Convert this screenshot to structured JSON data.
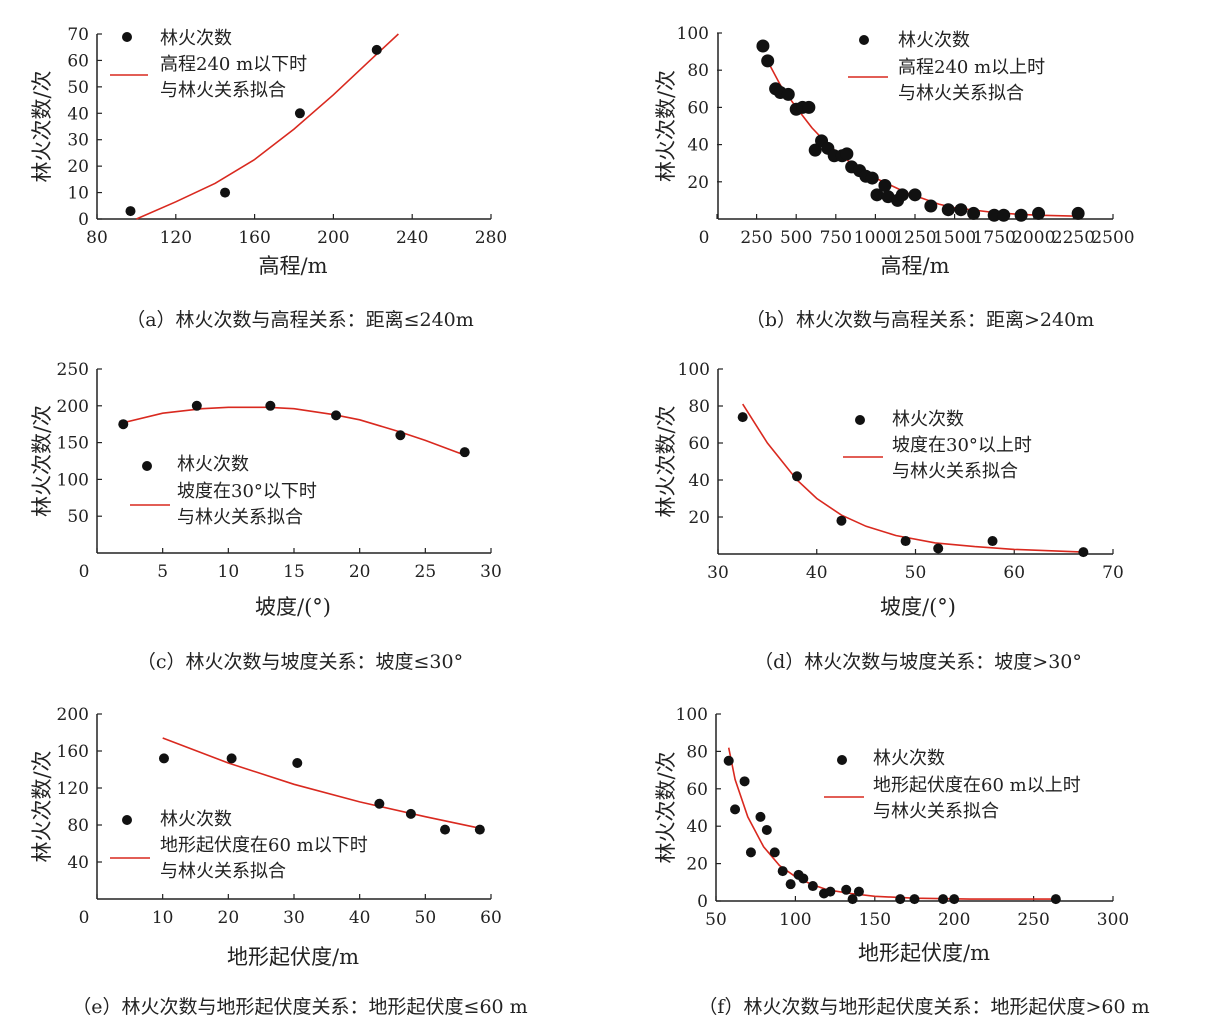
{
  "colors": {
    "fit": "#d9291f",
    "point": "#111111",
    "axis": "#222222"
  },
  "chart_data": [
    {
      "id": "a",
      "type": "scatter",
      "caption": "（a）林火次数与高程关系：距离≤240m",
      "xlabel": "高程/m",
      "ylabel": "林火次数/次",
      "xlim": [
        80,
        280
      ],
      "ylim": [
        0,
        70
      ],
      "xticks": [
        80,
        120,
        160,
        200,
        240,
        280
      ],
      "yticks": [
        0,
        10,
        20,
        30,
        40,
        50,
        60,
        70
      ],
      "legend": {
        "points": "林火次数",
        "fit_line1": "高程240 m以下时",
        "fit_line2": "与林火关系拟合"
      },
      "points": [
        [
          97,
          3
        ],
        [
          145,
          10
        ],
        [
          183,
          40
        ],
        [
          222,
          64
        ]
      ],
      "fit": [
        [
          100,
          0
        ],
        [
          120,
          6.5
        ],
        [
          140,
          13.5
        ],
        [
          160,
          22.5
        ],
        [
          180,
          34
        ],
        [
          200,
          47
        ],
        [
          220,
          61
        ],
        [
          233,
          70
        ]
      ]
    },
    {
      "id": "b",
      "type": "scatter",
      "caption": "（b）林火次数与高程关系：距离>240m",
      "xlabel": "高程/m",
      "ylabel": "林火次数/次",
      "xlim": [
        0,
        2500
      ],
      "ylim": [
        0,
        100
      ],
      "xticks": [
        0,
        250,
        500,
        750,
        1000,
        1250,
        1500,
        1750,
        2000,
        2250,
        2500
      ],
      "yticks": [
        20,
        40,
        60,
        80,
        100
      ],
      "legend": {
        "points": "林火次数",
        "fit_line1": "高程240 m以上时",
        "fit_line2": "与林火关系拟合"
      },
      "points": [
        [
          290,
          93
        ],
        [
          320,
          85
        ],
        [
          370,
          70
        ],
        [
          400,
          68
        ],
        [
          450,
          67
        ],
        [
          500,
          59
        ],
        [
          540,
          60
        ],
        [
          580,
          60
        ],
        [
          620,
          37
        ],
        [
          660,
          42
        ],
        [
          700,
          38
        ],
        [
          740,
          34
        ],
        [
          790,
          34
        ],
        [
          820,
          35
        ],
        [
          850,
          28
        ],
        [
          900,
          26
        ],
        [
          940,
          23
        ],
        [
          980,
          22
        ],
        [
          1010,
          13
        ],
        [
          1060,
          18
        ],
        [
          1080,
          12
        ],
        [
          1140,
          10
        ],
        [
          1170,
          13
        ],
        [
          1250,
          13
        ],
        [
          1350,
          7
        ],
        [
          1460,
          5
        ],
        [
          1540,
          5
        ],
        [
          1620,
          3
        ],
        [
          1750,
          2
        ],
        [
          1810,
          2
        ],
        [
          1920,
          2
        ],
        [
          2030,
          3
        ],
        [
          2280,
          3
        ]
      ],
      "fit": [
        [
          300,
          88
        ],
        [
          400,
          72
        ],
        [
          500,
          60
        ],
        [
          600,
          49
        ],
        [
          700,
          40
        ],
        [
          800,
          33
        ],
        [
          900,
          27
        ],
        [
          1000,
          22
        ],
        [
          1100,
          18
        ],
        [
          1200,
          14
        ],
        [
          1300,
          11
        ],
        [
          1400,
          8
        ],
        [
          1500,
          6
        ],
        [
          1600,
          5
        ],
        [
          1750,
          3.5
        ],
        [
          1900,
          2.5
        ],
        [
          2050,
          2
        ],
        [
          2280,
          1.5
        ]
      ]
    },
    {
      "id": "c",
      "type": "scatter",
      "caption": "（c）林火次数与坡度关系：坡度≤30°",
      "xlabel": "坡度/(°)",
      "ylabel": "林火次数/次",
      "xlim": [
        0,
        30
      ],
      "ylim": [
        0,
        250
      ],
      "xticks": [
        0,
        5,
        10,
        15,
        20,
        25,
        30
      ],
      "yticks": [
        50,
        100,
        150,
        200,
        250
      ],
      "legend": {
        "points": "林火次数",
        "fit_line1": "坡度在30°以下时",
        "fit_line2": "与林火关系拟合"
      },
      "points": [
        [
          2,
          175
        ],
        [
          7.6,
          200
        ],
        [
          13.2,
          200
        ],
        [
          18.2,
          187
        ],
        [
          23.1,
          160
        ],
        [
          28,
          137
        ]
      ],
      "fit": [
        [
          2,
          177
        ],
        [
          5,
          190
        ],
        [
          8,
          196
        ],
        [
          10,
          198
        ],
        [
          13,
          198
        ],
        [
          15,
          196
        ],
        [
          18,
          188
        ],
        [
          20,
          181
        ],
        [
          23,
          165
        ],
        [
          25,
          153
        ],
        [
          28,
          133
        ]
      ]
    },
    {
      "id": "d",
      "type": "scatter",
      "caption": "（d）林火次数与坡度关系：坡度>30°",
      "xlabel": "坡度/(°)",
      "ylabel": "林火次数/次",
      "xlim": [
        30,
        70
      ],
      "ylim": [
        0,
        100
      ],
      "xticks": [
        30,
        40,
        50,
        60,
        70
      ],
      "yticks": [
        20,
        40,
        60,
        80,
        100
      ],
      "legend": {
        "points": "林火次数",
        "fit_line1": "坡度在30°以上时",
        "fit_line2": "与林火关系拟合"
      },
      "points": [
        [
          32.5,
          74
        ],
        [
          38,
          42
        ],
        [
          42.5,
          18
        ],
        [
          49,
          7
        ],
        [
          52.3,
          3
        ],
        [
          57.8,
          7
        ],
        [
          67,
          1
        ]
      ],
      "fit": [
        [
          32.5,
          81
        ],
        [
          35,
          60
        ],
        [
          38,
          40
        ],
        [
          40,
          30
        ],
        [
          42.5,
          21
        ],
        [
          45,
          15
        ],
        [
          48,
          10
        ],
        [
          52,
          6
        ],
        [
          56,
          4
        ],
        [
          60,
          2.5
        ],
        [
          67,
          1
        ]
      ]
    },
    {
      "id": "e",
      "type": "scatter",
      "caption": "（e）林火次数与地形起伏度关系：地形起伏度≤60 m",
      "xlabel": "地形起伏度/m",
      "ylabel": "林火次数/次",
      "xlim": [
        0,
        60
      ],
      "ylim": [
        0,
        200
      ],
      "xticks": [
        0,
        10,
        20,
        30,
        40,
        50,
        60
      ],
      "yticks": [
        40,
        80,
        120,
        160,
        200
      ],
      "legend": {
        "points": "林火次数",
        "fit_line1": "地形起伏度在60 m以下时",
        "fit_line2": "与林火关系拟合"
      },
      "points": [
        [
          10.2,
          152
        ],
        [
          20.5,
          152
        ],
        [
          30.5,
          147
        ],
        [
          43,
          103
        ],
        [
          47.8,
          92
        ],
        [
          53,
          75
        ],
        [
          58.3,
          75
        ]
      ],
      "fit": [
        [
          10,
          174
        ],
        [
          20,
          147
        ],
        [
          30,
          124
        ],
        [
          40,
          105
        ],
        [
          50,
          89
        ],
        [
          58,
          77
        ]
      ]
    },
    {
      "id": "f",
      "type": "scatter",
      "caption": "（f）林火次数与地形起伏度关系：地形起伏度>60 m",
      "xlabel": "地形起伏度/m",
      "ylabel": "林火次数/次",
      "xlim": [
        50,
        300
      ],
      "ylim": [
        0,
        100
      ],
      "xticks": [
        50,
        100,
        150,
        200,
        250,
        300
      ],
      "yticks": [
        0,
        20,
        40,
        60,
        80,
        100
      ],
      "legend": {
        "points": "林火次数",
        "fit_line1": "地形起伏度在60 m以上时",
        "fit_line2": "与林火关系拟合"
      },
      "points": [
        [
          58,
          75
        ],
        [
          62,
          49
        ],
        [
          68,
          64
        ],
        [
          72,
          26
        ],
        [
          78,
          45
        ],
        [
          82,
          38
        ],
        [
          87,
          26
        ],
        [
          92,
          16
        ],
        [
          97,
          9
        ],
        [
          102,
          14
        ],
        [
          105,
          12
        ],
        [
          111,
          8
        ],
        [
          118,
          4
        ],
        [
          122,
          5
        ],
        [
          132,
          6
        ],
        [
          136,
          1
        ],
        [
          140,
          5
        ],
        [
          166,
          1
        ],
        [
          175,
          1
        ],
        [
          193,
          1
        ],
        [
          200,
          1
        ],
        [
          264,
          1
        ]
      ],
      "fit": [
        [
          58,
          82
        ],
        [
          62,
          65
        ],
        [
          70,
          45
        ],
        [
          80,
          29
        ],
        [
          90,
          19
        ],
        [
          100,
          13
        ],
        [
          110,
          9
        ],
        [
          120,
          6
        ],
        [
          135,
          4
        ],
        [
          150,
          2.5
        ],
        [
          175,
          1.5
        ],
        [
          210,
          1
        ],
        [
          265,
          1
        ]
      ]
    }
  ]
}
